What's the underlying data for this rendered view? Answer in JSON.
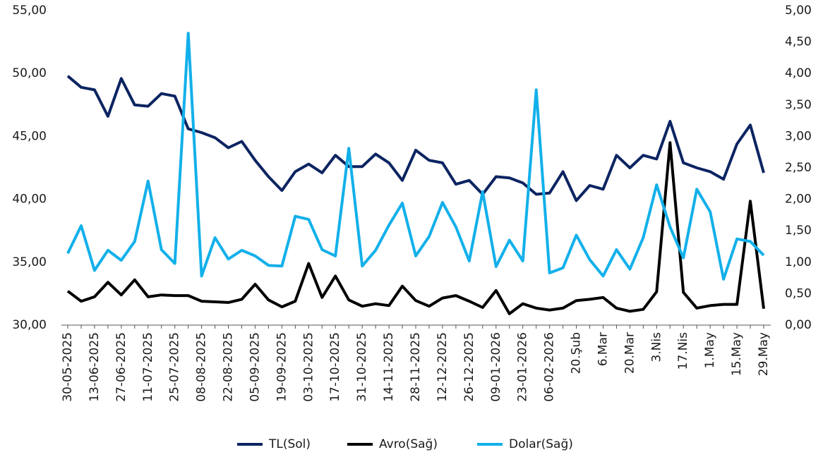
{
  "chart_data": {
    "type": "line",
    "categories": [
      "30-05-2025",
      null,
      "13-06-2025",
      null,
      "27-06-2025",
      null,
      "11-07-2025",
      null,
      "25-07-2025",
      null,
      "08-08-2025",
      null,
      "22-08-2025",
      null,
      "05-09-2025",
      null,
      "19-09-2025",
      null,
      "03-10-2025",
      null,
      "17-10-2025",
      null,
      "31-10-2025",
      null,
      "14-11-2025",
      null,
      "28-11-2025",
      null,
      "12-12-2025",
      null,
      "26-12-2025",
      null,
      "09-01-2026",
      null,
      "23-01-2026",
      null,
      "06-02-2026",
      null,
      "20.Şub",
      null,
      "6.Mar",
      null,
      "20.Mar",
      null,
      "3.Nis",
      null,
      "17.Nis",
      null,
      "1.May",
      null,
      "15.May",
      null,
      "29.May"
    ],
    "series": [
      {
        "name": "TL(Sol)",
        "color": "#0c2461",
        "values": [
          49.8,
          48.9,
          48.7,
          46.6,
          49.6,
          47.5,
          47.4,
          48.4,
          48.2,
          45.6,
          45.3,
          44.9,
          44.1,
          44.6,
          43.1,
          41.8,
          40.7,
          42.2,
          42.8,
          42.1,
          43.5,
          42.6,
          42.6,
          43.6,
          42.9,
          41.5,
          43.9,
          43.1,
          42.9,
          41.2,
          41.5,
          40.4,
          41.8,
          41.7,
          41.3,
          40.4,
          40.5,
          42.2,
          39.9,
          41.1,
          40.8,
          43.5,
          42.5,
          43.5,
          43.2,
          46.2,
          42.9,
          42.5,
          42.2,
          41.6,
          44.4,
          45.9,
          42.1
        ]
      },
      {
        "name": "Avro(Sağ)",
        "color": "#000000",
        "axis": "y2",
        "values": [
          0.54,
          0.38,
          0.45,
          0.68,
          0.48,
          0.72,
          0.45,
          0.48,
          0.47,
          0.47,
          0.38,
          0.37,
          0.36,
          0.41,
          0.65,
          0.4,
          0.29,
          0.38,
          0.98,
          0.44,
          0.78,
          0.4,
          0.3,
          0.34,
          0.31,
          0.62,
          0.39,
          0.3,
          0.43,
          0.47,
          0.38,
          0.28,
          0.55,
          0.18,
          0.34,
          0.27,
          0.24,
          0.27,
          0.39,
          0.41,
          0.44,
          0.27,
          0.22,
          0.25,
          0.53,
          2.9,
          0.52,
          0.27,
          0.31,
          0.33,
          0.33,
          1.97,
          0.26
        ]
      },
      {
        "name": "Dolar(Sağ)",
        "color": "#12b0ea",
        "axis": "y2",
        "values": [
          1.14,
          1.58,
          0.87,
          1.19,
          1.03,
          1.33,
          2.29,
          1.2,
          0.98,
          4.64,
          0.78,
          1.39,
          1.05,
          1.19,
          1.1,
          0.95,
          0.94,
          1.73,
          1.68,
          1.2,
          1.1,
          2.81,
          0.94,
          1.19,
          1.59,
          1.94,
          1.1,
          1.41,
          1.95,
          1.56,
          1.02,
          2.12,
          0.93,
          1.35,
          1.02,
          3.74,
          0.83,
          0.91,
          1.43,
          1.04,
          0.78,
          1.2,
          0.89,
          1.39,
          2.23,
          1.56,
          1.07,
          2.16,
          1.8,
          0.73,
          1.37,
          1.33,
          1.11
        ]
      }
    ],
    "ylim": [
      30,
      55
    ],
    "yticks": [
      {
        "value": 30,
        "label": "30,00"
      },
      {
        "value": 35,
        "label": "35,00"
      },
      {
        "value": 40,
        "label": "40,00"
      },
      {
        "value": 45,
        "label": "45,00"
      },
      {
        "value": 50,
        "label": "50,00"
      },
      {
        "value": 55,
        "label": "55,00"
      }
    ],
    "y2lim": [
      0,
      5
    ],
    "y2ticks": [
      {
        "value": 0,
        "label": "0,00"
      },
      {
        "value": 0.5,
        "label": "0,50"
      },
      {
        "value": 1,
        "label": "1,00"
      },
      {
        "value": 1.5,
        "label": "1,50"
      },
      {
        "value": 2,
        "label": "2,00"
      },
      {
        "value": 2.5,
        "label": "2,50"
      },
      {
        "value": 3,
        "label": "3,00"
      },
      {
        "value": 3.5,
        "label": "3,50"
      },
      {
        "value": 4,
        "label": "4,00"
      },
      {
        "value": 4.5,
        "label": "4,50"
      },
      {
        "value": 5,
        "label": "5,00"
      }
    ],
    "grid": false,
    "legend": "bottom"
  }
}
